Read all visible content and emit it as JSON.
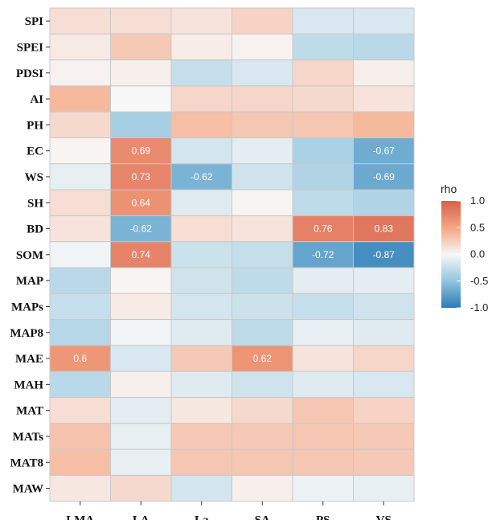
{
  "chart_data": {
    "type": "heatmap",
    "rows": [
      "SPI",
      "SPEI",
      "PDSI",
      "AI",
      "PH",
      "EC",
      "WS",
      "SH",
      "BD",
      "SOM",
      "MAP",
      "MAPs",
      "MAP8",
      "MAE",
      "MAH",
      "MAT",
      "MATs",
      "MAT8",
      "MAW"
    ],
    "columns": [
      "LMA",
      "LA",
      "La",
      "SA",
      "PS",
      "VS"
    ],
    "values": [
      [
        0.15,
        0.15,
        0.12,
        0.22,
        -0.15,
        -0.15
      ],
      [
        0.08,
        0.28,
        0.07,
        0.03,
        -0.28,
        -0.3
      ],
      [
        0.03,
        0.05,
        -0.25,
        -0.15,
        0.2,
        0.05
      ],
      [
        0.38,
        0.0,
        0.2,
        0.2,
        0.18,
        0.12
      ],
      [
        0.18,
        -0.4,
        0.35,
        0.3,
        0.3,
        0.38
      ],
      [
        0.02,
        0.69,
        -0.18,
        -0.1,
        -0.38,
        -0.67
      ],
      [
        -0.08,
        0.73,
        -0.62,
        -0.2,
        -0.35,
        -0.69
      ],
      [
        0.15,
        0.64,
        -0.12,
        0.02,
        -0.28,
        -0.35
      ],
      [
        0.12,
        -0.62,
        0.15,
        0.12,
        0.76,
        0.83
      ],
      [
        -0.03,
        0.74,
        -0.22,
        -0.25,
        -0.72,
        -0.87
      ],
      [
        -0.3,
        0.02,
        -0.2,
        -0.28,
        -0.1,
        -0.1
      ],
      [
        -0.25,
        0.08,
        -0.18,
        -0.22,
        -0.25,
        -0.2
      ],
      [
        -0.32,
        -0.03,
        -0.12,
        -0.28,
        -0.08,
        -0.12
      ],
      [
        0.6,
        -0.15,
        0.28,
        0.62,
        0.12,
        0.2
      ],
      [
        -0.3,
        0.05,
        -0.12,
        -0.2,
        -0.12,
        -0.15
      ],
      [
        0.15,
        -0.1,
        0.1,
        0.18,
        0.3,
        0.22
      ],
      [
        0.32,
        -0.08,
        0.28,
        0.28,
        0.3,
        0.28
      ],
      [
        0.35,
        -0.08,
        0.3,
        0.3,
        0.3,
        0.28
      ],
      [
        0.1,
        0.18,
        -0.18,
        0.05,
        -0.05,
        -0.08
      ]
    ],
    "labels": [
      {
        "row": "EC",
        "col": "LA",
        "text": "0.69"
      },
      {
        "row": "EC",
        "col": "VS",
        "text": "-0.67"
      },
      {
        "row": "WS",
        "col": "LA",
        "text": "0.73"
      },
      {
        "row": "WS",
        "col": "La",
        "text": "-0.62"
      },
      {
        "row": "WS",
        "col": "VS",
        "text": "-0.69"
      },
      {
        "row": "SH",
        "col": "LA",
        "text": "0.64"
      },
      {
        "row": "BD",
        "col": "LA",
        "text": "-0.62"
      },
      {
        "row": "BD",
        "col": "PS",
        "text": "0.76"
      },
      {
        "row": "BD",
        "col": "VS",
        "text": "0.83"
      },
      {
        "row": "SOM",
        "col": "LA",
        "text": "0.74"
      },
      {
        "row": "SOM",
        "col": "PS",
        "text": "-0.72"
      },
      {
        "row": "SOM",
        "col": "VS",
        "text": "-0.87"
      },
      {
        "row": "MAE",
        "col": "LMA",
        "text": "0.6"
      },
      {
        "row": "MAE",
        "col": "SA",
        "text": "0.62"
      }
    ],
    "legend": {
      "title": "rho",
      "ticks": [
        "1.0",
        "0.5",
        "0.0",
        "-0.5",
        "-1.0"
      ],
      "range": [
        -1,
        1
      ],
      "colors": {
        "low": "#2c7bb6",
        "mid": "#f7f7f7",
        "high": "#d6604d"
      }
    }
  }
}
